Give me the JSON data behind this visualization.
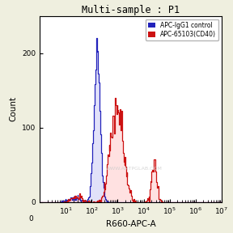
{
  "title": "Multi-sample : P1",
  "xlabel": "R660-APC-A",
  "ylabel": "Count",
  "ylim": [
    0,
    250
  ],
  "yticks": [
    0,
    100,
    200
  ],
  "background_color": "#efefdf",
  "plot_bg_color": "#ffffff",
  "blue_color": "#2222bb",
  "red_color": "#cc1111",
  "blue_fill": "#aaaaee",
  "red_fill": "#ffaaaa",
  "legend_labels": [
    "APC-IgG1 control",
    "APC-65103(CD40)"
  ],
  "watermark": "WWW.ANTPGLAB.COM",
  "title_fontsize": 8.5,
  "axis_fontsize": 7.5,
  "tick_fontsize": 6.5
}
